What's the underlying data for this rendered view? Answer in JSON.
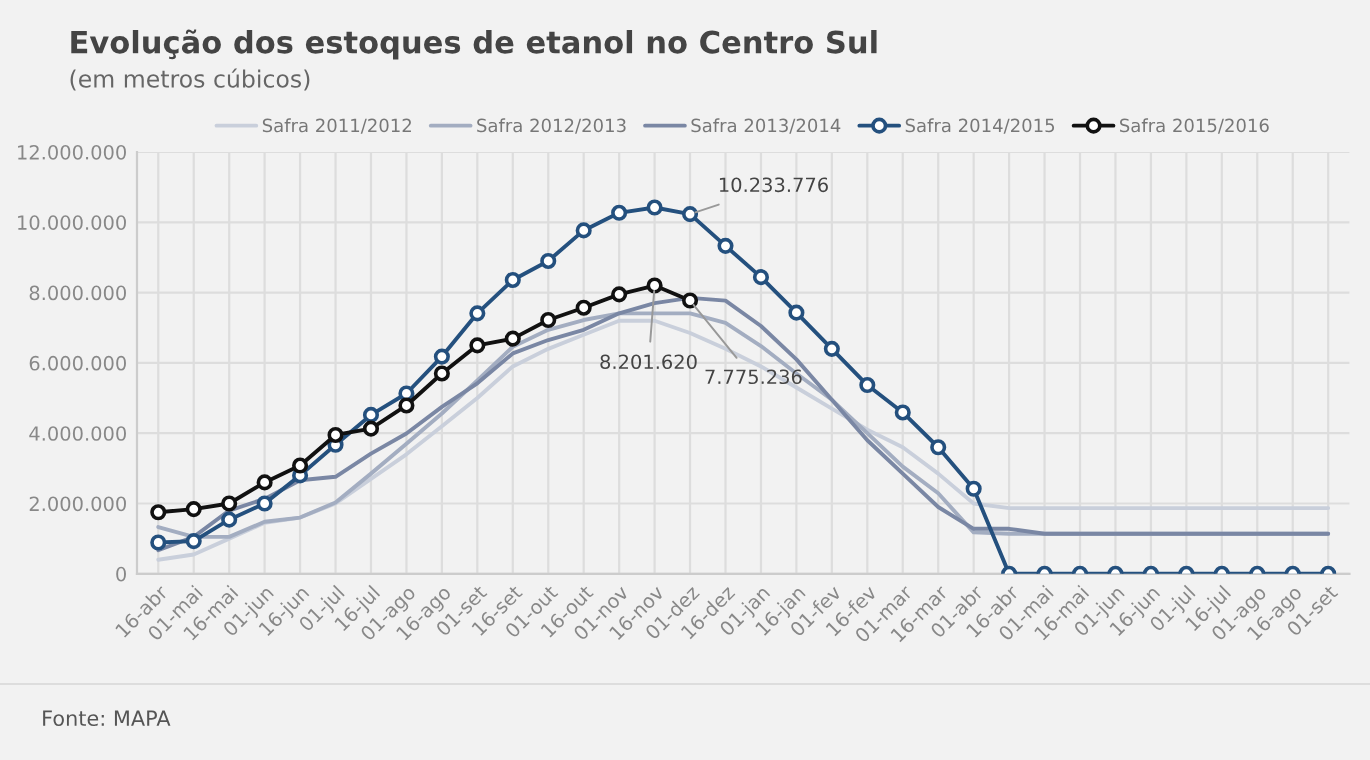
{
  "chart_data": {
    "type": "line",
    "title": "Evolução dos estoques de etanol no Centro Sul",
    "subtitle": "(em metros cúbicos)",
    "categories": [
      "16-abr",
      "01-mai",
      "16-mai",
      "01-jun",
      "16-jun",
      "01-jul",
      "16-jul",
      "01-ago",
      "16-ago",
      "01-set",
      "16-set",
      "01-out",
      "16-out",
      "01-nov",
      "16-nov",
      "01-dez",
      "16-dez",
      "01-jan",
      "16-jan",
      "01-fev",
      "16-fev",
      "01-mar",
      "16-mar",
      "01-abr",
      "16-abr",
      "01-mai",
      "16-mai",
      "01-jun",
      "16-jun",
      "01-jul",
      "16-jul",
      "01-ago",
      "16-ago",
      "01-set"
    ],
    "series": [
      {
        "name": "Safra 2011/2012",
        "color": "#c9cfdb",
        "marker": "none",
        "values": [
          400000,
          550000,
          1000000,
          1450000,
          1600000,
          2000000,
          2700000,
          3400000,
          4200000,
          5000000,
          5900000,
          6400000,
          6800000,
          7200000,
          7200000,
          6850000,
          6400000,
          5900000,
          5300000,
          4700000,
          4100000,
          3600000,
          2850000,
          2000000,
          1870000,
          1870000,
          1870000,
          1870000,
          1870000,
          1870000,
          1870000,
          1870000,
          1870000,
          1870000
        ]
      },
      {
        "name": "Safra 2012/2013",
        "color": "#a3adc1",
        "marker": "none",
        "values": [
          1330000,
          1050000,
          1050000,
          1480000,
          1600000,
          2030000,
          2850000,
          3700000,
          4560000,
          5500000,
          6460000,
          6940000,
          7220000,
          7410000,
          7410000,
          7410000,
          7140000,
          6480000,
          5700000,
          4950000,
          4000000,
          3050000,
          2290000,
          1180000,
          1140000,
          1140000,
          1140000,
          1140000,
          1140000,
          1140000,
          1140000,
          1140000,
          1140000,
          1140000
        ]
      },
      {
        "name": "Safra 2013/2014",
        "color": "#7a87a4",
        "marker": "none",
        "values": [
          670000,
          1050000,
          1800000,
          2130000,
          2660000,
          2760000,
          3420000,
          3990000,
          4750000,
          5420000,
          6270000,
          6650000,
          6940000,
          7410000,
          7700000,
          7850000,
          7770000,
          7050000,
          6100000,
          4950000,
          3800000,
          2850000,
          1900000,
          1280000,
          1280000,
          1140000,
          1140000,
          1140000,
          1140000,
          1140000,
          1140000,
          1140000,
          1140000,
          1140000
        ]
      },
      {
        "name": "Safra 2014/2015",
        "color": "#24507e",
        "marker": "circle",
        "values": [
          890000,
          930000,
          1540000,
          2000000,
          2800000,
          3670000,
          4520000,
          5130000,
          6180000,
          7410000,
          8360000,
          8900000,
          9770000,
          10270000,
          10420000,
          10233776,
          9330000,
          8440000,
          7430000,
          6400000,
          5370000,
          4590000,
          3600000,
          2420000,
          0,
          0,
          0,
          0,
          0,
          0,
          0,
          0,
          0,
          0
        ]
      },
      {
        "name": "Safra 2015/2016",
        "color": "#111111",
        "marker": "circle",
        "values": [
          1750000,
          1840000,
          2000000,
          2600000,
          3080000,
          3950000,
          4130000,
          4790000,
          5700000,
          6500000,
          6690000,
          7220000,
          7570000,
          7950000,
          8201620,
          7775236,
          null,
          null,
          null,
          null,
          null,
          null,
          null,
          null,
          null,
          null,
          null,
          null,
          null,
          null,
          null,
          null,
          null,
          null
        ]
      }
    ],
    "ylim": [
      0,
      12000000
    ],
    "yticks": [
      {
        "value": 0,
        "label": "0"
      },
      {
        "value": 2000000,
        "label": "2.000.000"
      },
      {
        "value": 4000000,
        "label": "4.000.000"
      },
      {
        "value": 6000000,
        "label": "6.000.000"
      },
      {
        "value": 8000000,
        "label": "8.000.000"
      },
      {
        "value": 10000000,
        "label": "10.000.000"
      },
      {
        "value": 12000000,
        "label": "12.000.000"
      }
    ],
    "grid": true,
    "legend": "top",
    "annotations": [
      {
        "text": "10.233.776",
        "x": "01-dez",
        "y": 10233776
      },
      {
        "text": "8.201.620",
        "x": "16-nov",
        "y": 8201620
      },
      {
        "text": "7.775.236",
        "x": "01-dez",
        "y": 7775236
      },
      "Fonte: MAPA"
    ]
  }
}
